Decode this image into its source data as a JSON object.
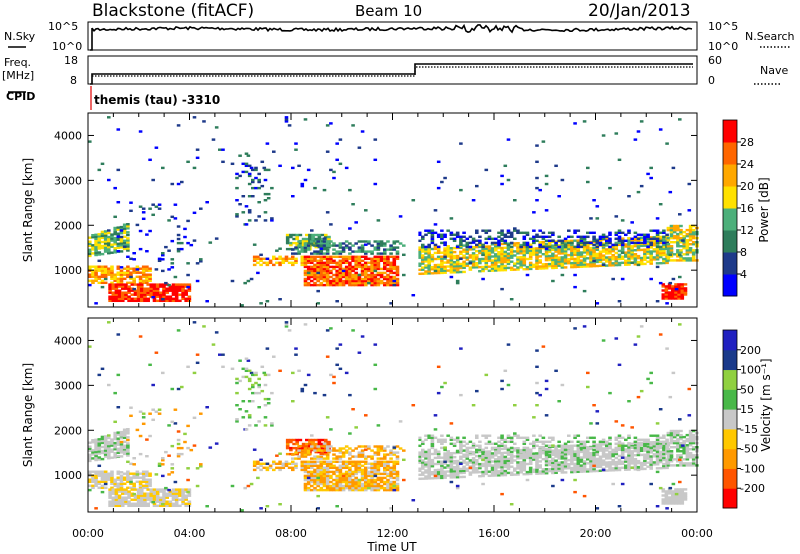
{
  "header": {
    "station": "Blackstone (fitACF)",
    "beam": "Beam 10",
    "date": "20/Jan/2013"
  },
  "noise_panel": {
    "left_label": "N.Sky",
    "left_tick_top": "10^5",
    "left_tick_bottom": "10^0",
    "right_tick_top": "10^5",
    "right_tick_bottom": "10^0",
    "right_label": "N.Search"
  },
  "freq_panel": {
    "left_label_1": "Freq.",
    "left_label_2": "[MHz]",
    "left_tick_top": "18",
    "left_tick_bottom": "8",
    "right_tick_top": "60",
    "right_tick_bottom": "0",
    "right_label": "Nave",
    "cpid_label": "CPID",
    "cpid_value": "themis (tau) -3310"
  },
  "colors": {
    "power_scale": [
      "#0000ff",
      "#1e3a8a",
      "#2e7d5b",
      "#4caf7a",
      "#ffe100",
      "#ffa800",
      "#ff6600",
      "#ff0000"
    ],
    "velocity_scale": [
      "#ff0000",
      "#ff5500",
      "#ff9900",
      "#ffc800",
      "#c8c8c8",
      "#48b848",
      "#90d040",
      "#1a3a8a",
      "#2020c0"
    ],
    "grey": "#c8c8c8"
  },
  "chart_data": [
    {
      "type": "heatmap",
      "name": "power",
      "ylabel": "Slant Range [km]",
      "y_ticks": [
        "1000",
        "2000",
        "3000",
        "4000"
      ],
      "y_tick_values": [
        1000,
        2000,
        3000,
        4000
      ],
      "ylim": [
        180,
        4500
      ],
      "colorbar_label": "Power [dB]",
      "colorbar_ticks": [
        "4",
        "8",
        "12",
        "16",
        "20",
        "24",
        "28"
      ],
      "colorbar_values": [
        4,
        8,
        12,
        16,
        20,
        24,
        28
      ],
      "zlim": [
        0,
        32
      ]
    },
    {
      "type": "heatmap",
      "name": "velocity",
      "ylabel": "Slant Range [km]",
      "y_ticks": [
        "1000",
        "2000",
        "3000",
        "4000"
      ],
      "y_tick_values": [
        1000,
        2000,
        3000,
        4000
      ],
      "ylim": [
        180,
        4500
      ],
      "colorbar_label": "Velocity [m s⁻¹]",
      "colorbar_ticks": [
        "-200",
        "-100",
        "-50",
        "-15",
        "15",
        "50",
        "100",
        "200"
      ],
      "colorbar_values": [
        -200,
        -100,
        -50,
        -15,
        15,
        50,
        100,
        200
      ],
      "xlabel": "Time UT",
      "x_ticks": [
        "00:00",
        "04:00",
        "08:00",
        "12:00",
        "16:00",
        "20:00",
        "00:00"
      ],
      "x_tick_hours": [
        0,
        4,
        8,
        12,
        16,
        20,
        24
      ]
    }
  ]
}
